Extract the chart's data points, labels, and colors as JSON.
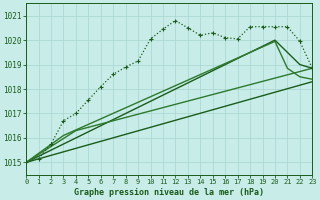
{
  "title": "Graphe pression niveau de la mer (hPa)",
  "bg_color": "#c8ece8",
  "grid_color": "#a8d4d0",
  "line_color_dark": "#1a5c1a",
  "line_color_mid": "#2d7a2d",
  "xlim": [
    0,
    23
  ],
  "ylim": [
    1014.5,
    1021.5
  ],
  "yticks": [
    1015,
    1016,
    1017,
    1018,
    1019,
    1020,
    1021
  ],
  "xticks": [
    0,
    1,
    2,
    3,
    4,
    5,
    6,
    7,
    8,
    9,
    10,
    11,
    12,
    13,
    14,
    15,
    16,
    17,
    18,
    19,
    20,
    21,
    22,
    23
  ],
  "line1_x": [
    0,
    1,
    2,
    3,
    4,
    5,
    6,
    7,
    8,
    9,
    10,
    11,
    12,
    13,
    14,
    15,
    16,
    17,
    18,
    19,
    20,
    21,
    22,
    23
  ],
  "line1_y": [
    1015.0,
    1015.15,
    1015.75,
    1016.7,
    1017.0,
    1017.55,
    1018.1,
    1018.6,
    1018.9,
    1019.15,
    1020.05,
    1020.45,
    1020.8,
    1020.5,
    1020.2,
    1020.3,
    1020.1,
    1020.05,
    1020.55,
    1020.55,
    1020.55,
    1020.55,
    1019.95,
    1018.85
  ],
  "line2_x": [
    0,
    23
  ],
  "line2_y": [
    1015.0,
    1018.3
  ],
  "line3_x": [
    0,
    20,
    22,
    23
  ],
  "line3_y": [
    1015.0,
    1020.0,
    1019.0,
    1018.85
  ],
  "line4_x": [
    0,
    4,
    23
  ],
  "line4_y": [
    1015.0,
    1016.3,
    1018.85
  ],
  "line5_x": [
    0,
    3,
    20,
    21,
    22,
    23
  ],
  "line5_y": [
    1015.0,
    1016.1,
    1019.95,
    1018.85,
    1018.5,
    1018.4
  ]
}
